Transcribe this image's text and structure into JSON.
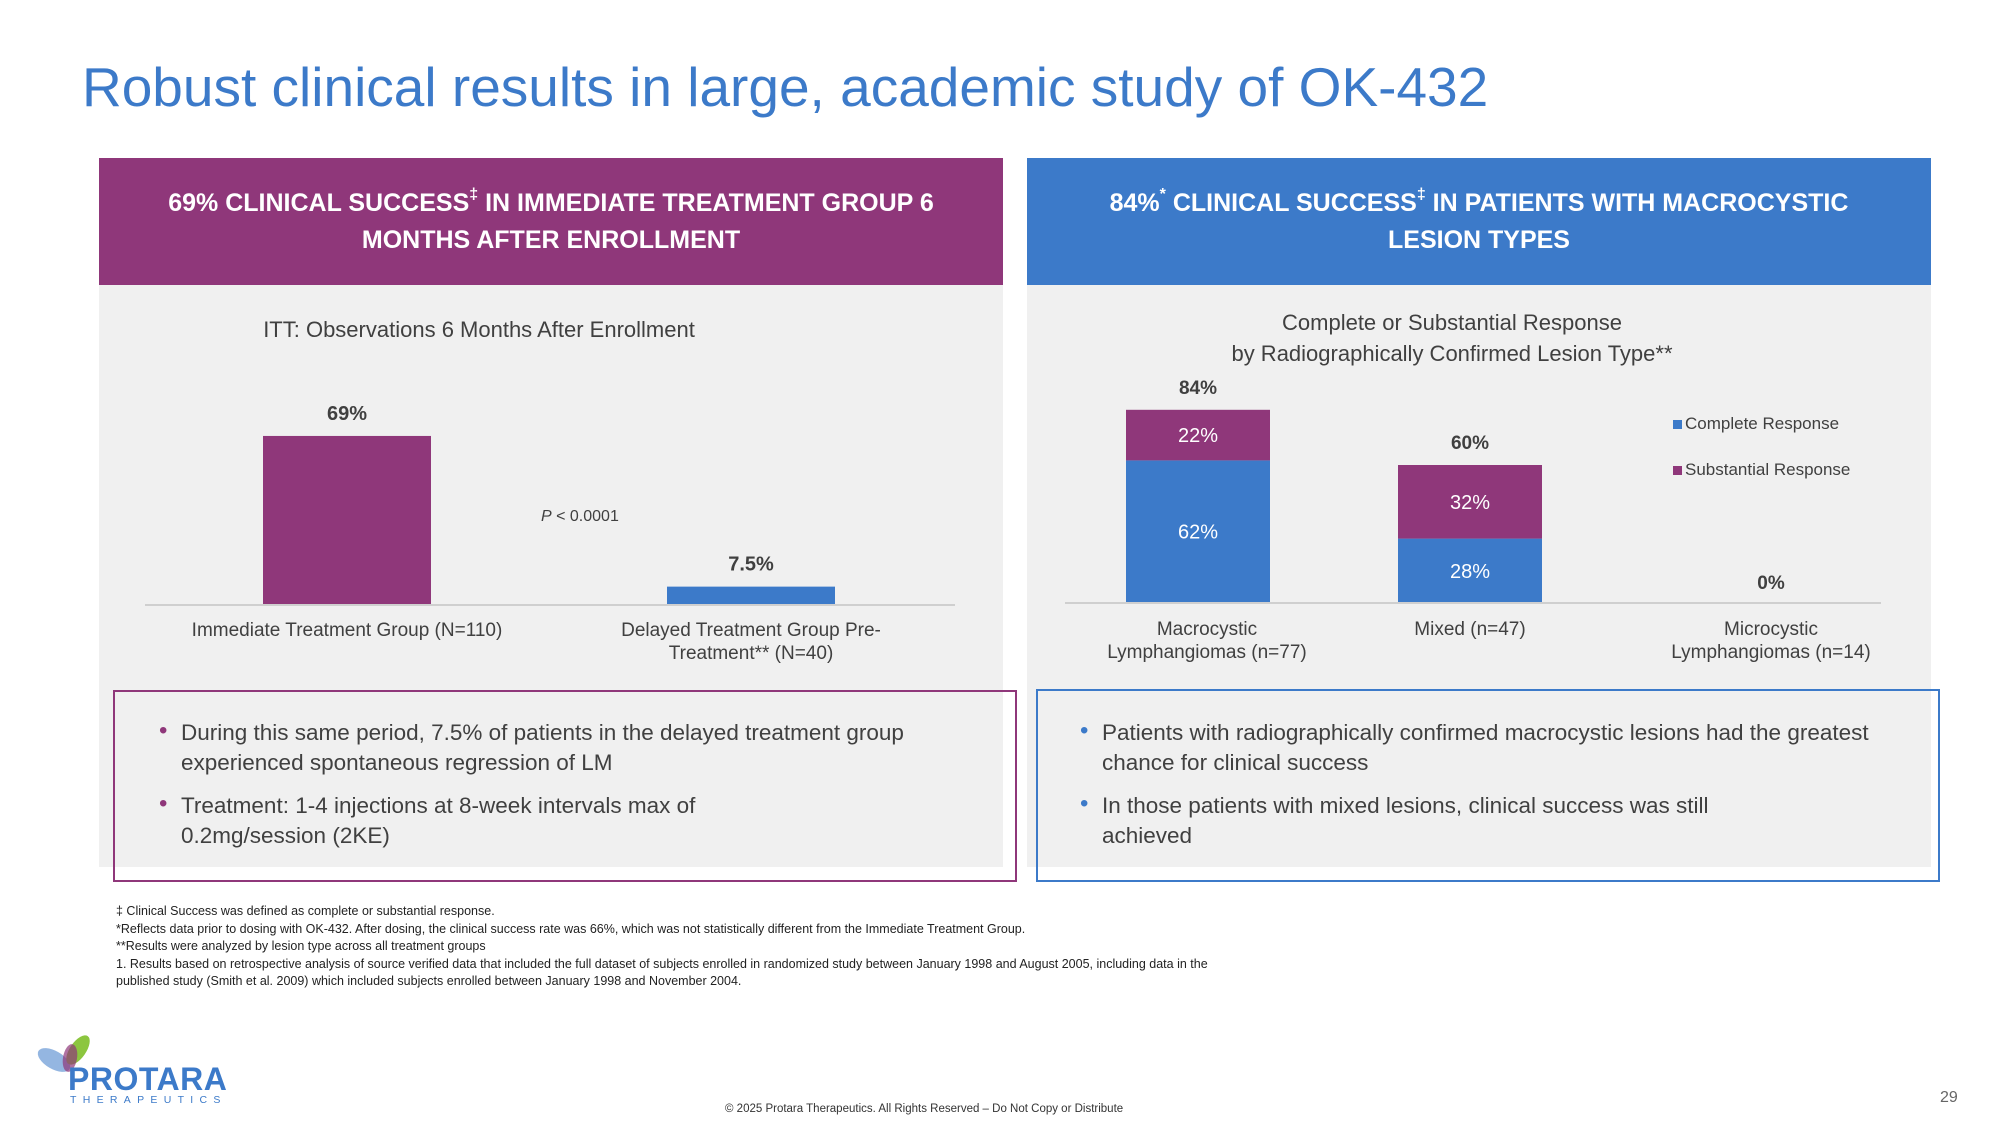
{
  "title": "Robust clinical results in large, academic study of OK-432",
  "left": {
    "header_line1": "69% CLINICAL SUCCESS",
    "header_sup": "‡",
    "header_line1b": " IN IMMEDIATE TREATMENT GROUP 6",
    "header_line2": "MONTHS AFTER ENROLLMENT",
    "bullets": [
      "During this same period, 7.5% of patients in the delayed treatment group experienced spontaneous regression of LM",
      "Treatment: 1-4 injections at 8-week intervals max of 0.2mg/session (2KE)"
    ]
  },
  "right": {
    "header_pre": "84%",
    "header_sup1": "*",
    "header_mid": " CLINICAL SUCCESS",
    "header_sup2": "‡",
    "header_post": " IN PATIENTS WITH MACROCYSTIC",
    "header_line2": "LESION TYPES",
    "bullets": [
      "Patients with radiographically confirmed macrocystic lesions had the greatest chance for clinical success",
      "In those patients with mixed lesions, clinical success was still achieved"
    ]
  },
  "chart_data": [
    {
      "type": "bar",
      "title": "ITT: Observations 6 Months After Enrollment",
      "categories": [
        "Immediate Treatment Group (N=110)",
        "Delayed Treatment Group Pre-Treatment** (N=40)"
      ],
      "category_lines": [
        [
          "Immediate Treatment Group (N=110)"
        ],
        [
          "Delayed Treatment Group Pre-",
          "Treatment** (N=40)"
        ]
      ],
      "values": [
        69,
        7.5
      ],
      "data_labels": [
        "69%",
        "7.5%"
      ],
      "colors": [
        "#8f377a",
        "#3c7ac9"
      ],
      "annotation_italic": "P",
      "annotation_rest": " < 0.0001",
      "ylim": [
        0,
        100
      ],
      "grid": false
    },
    {
      "type": "bar",
      "stacked": true,
      "title_lines": [
        "Complete or Substantial Response",
        "by Radiographically Confirmed Lesion Type**"
      ],
      "categories": [
        "Macrocystic Lymphangiomas (n=77)",
        "Mixed (n=47)",
        "Microcystic Lymphangiomas (n=14)"
      ],
      "category_lines": [
        [
          "Macrocystic",
          "Lymphangiomas (n=77)"
        ],
        [
          "Mixed (n=47)"
        ],
        [
          "Microcystic",
          "Lymphangiomas (n=14)"
        ]
      ],
      "series": [
        {
          "name": "Complete Response",
          "color": "#3c7ac9",
          "values": [
            62,
            28,
            0
          ],
          "labels": [
            "62%",
            "28%",
            ""
          ]
        },
        {
          "name": "Substantial Response",
          "color": "#8f377a",
          "values": [
            22,
            32,
            0
          ],
          "labels": [
            "22%",
            "32%",
            ""
          ]
        }
      ],
      "totals": [
        "84%",
        "60%",
        "0%"
      ],
      "total_values": [
        84,
        60,
        0
      ],
      "ylim": [
        0,
        100
      ],
      "legend": "top-right",
      "grid": false
    }
  ],
  "footnotes": [
    "‡ Clinical Success was defined as complete or substantial response.",
    "*Reflects data prior to dosing with OK-432.  After dosing, the clinical success rate was 66%, which was not statistically different from the Immediate Treatment Group.",
    "**Results were analyzed by lesion type across all treatment groups",
    "1. Results based on retrospective analysis of source verified data that included the full dataset of subjects enrolled in randomized study between January 1998 and August 2005, including data in the",
    "published study (Smith et al. 2009) which included subjects enrolled between January 1998 and November 2004."
  ],
  "copyright": "© 2025 Protara Therapeutics. All Rights Reserved – Do Not Copy or Distribute",
  "page_number": "29",
  "logo": {
    "name": "PROTARA",
    "sub": "THERAPEUTICS"
  },
  "colors": {
    "purple": "#8f377a",
    "blue": "#3c7ac9",
    "panel": "#f0f0f0"
  }
}
